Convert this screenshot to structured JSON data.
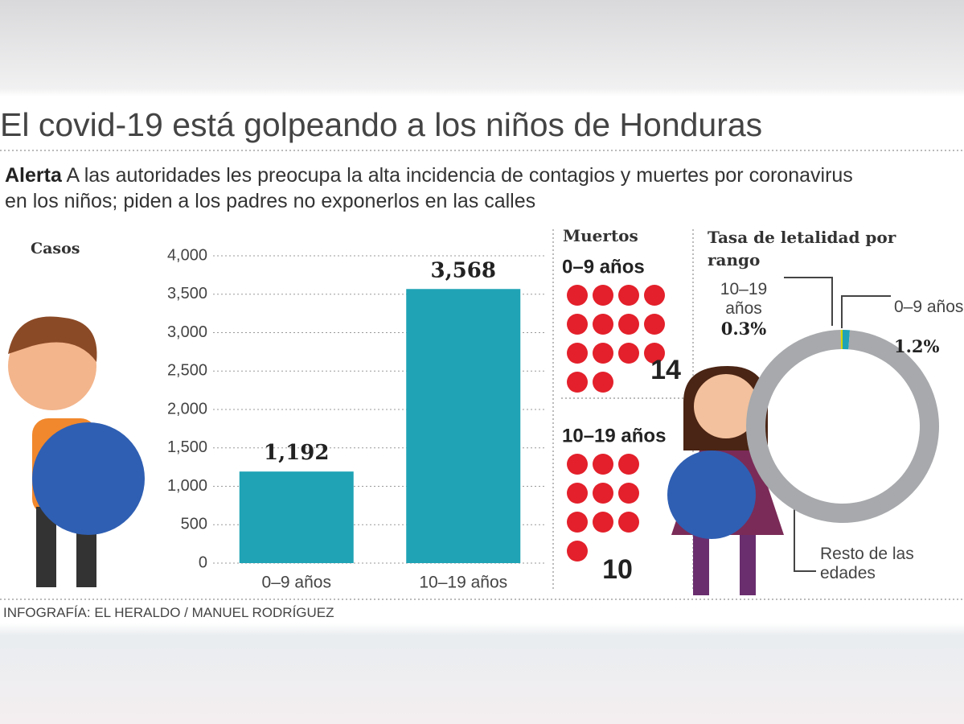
{
  "header": {
    "title": "El covid-19 está golpeando a los niños de Honduras",
    "lead": "Alerta",
    "subtitle": "A las autoridades les preocupa la alta incidencia de contagios y muertes por coronavirus en los niños; piden a los padres no exponerlos en las calles"
  },
  "chart_data": [
    {
      "type": "bar",
      "title": "Casos",
      "categories": [
        "0–9 años",
        "10–19 años"
      ],
      "values": [
        1192,
        3568
      ],
      "value_labels": [
        "1,192",
        "3,568"
      ],
      "color": "#1fa3b5",
      "ylim": [
        0,
        4000
      ],
      "yticks": [
        0,
        500,
        {
          "value": 1000,
          "label": "1,000"
        },
        {
          "value": 1500,
          "label": "1,500"
        },
        {
          "value": 2000,
          "label": "2,000"
        },
        {
          "value": 2500,
          "label": "2,500"
        },
        {
          "value": 3000,
          "label": "3,000"
        },
        {
          "value": 3500,
          "label": "3,500"
        },
        {
          "value": 4000,
          "label": "4,000"
        }
      ],
      "grid": true
    },
    {
      "type": "dots",
      "title": "Muertos",
      "categories": [
        "0–9 años",
        "10–19 años"
      ],
      "values": [
        14,
        10
      ],
      "color": "#e3202b"
    },
    {
      "type": "donut",
      "title": "Tasa de letalidad por rango",
      "categories": [
        "0–9 años",
        "Resto de las edades",
        "10–19 años"
      ],
      "values": [
        1.2,
        98.5,
        0.3
      ],
      "value_labels": [
        "1.2%",
        null,
        "0.3%"
      ],
      "colors": [
        "#1fa3b5",
        "#a7a9ac",
        "#d4d600"
      ]
    }
  ],
  "credit": "INFOGRAFÍA: EL HERALDO / MANUEL RODRÍGUEZ"
}
